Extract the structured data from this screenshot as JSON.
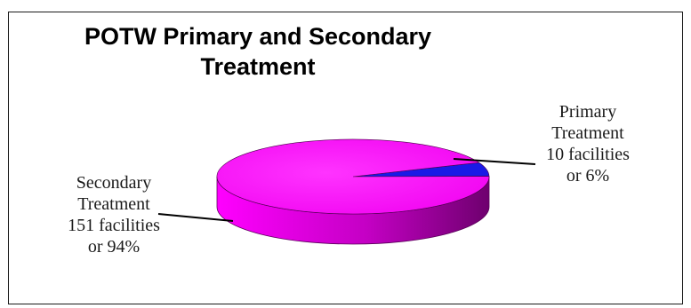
{
  "chart_data": {
    "type": "pie",
    "title": "POTW Primary and Secondary Treatment",
    "title_lines": [
      "POTW Primary and Secondary",
      "Treatment"
    ],
    "slices": [
      {
        "name": "Primary Treatment",
        "facilities": 10,
        "percent": 6,
        "color": "#1a1ae6",
        "label_lines": [
          "Primary",
          "Treatment",
          "10 facilities",
          "or 6%"
        ]
      },
      {
        "name": "Secondary Treatment",
        "facilities": 151,
        "percent": 94,
        "color": "#ff00ff",
        "label_lines": [
          "Secondary",
          "Treatment",
          "151 facilities",
          "or 94%"
        ]
      }
    ],
    "style": "3d",
    "legend": "none"
  }
}
